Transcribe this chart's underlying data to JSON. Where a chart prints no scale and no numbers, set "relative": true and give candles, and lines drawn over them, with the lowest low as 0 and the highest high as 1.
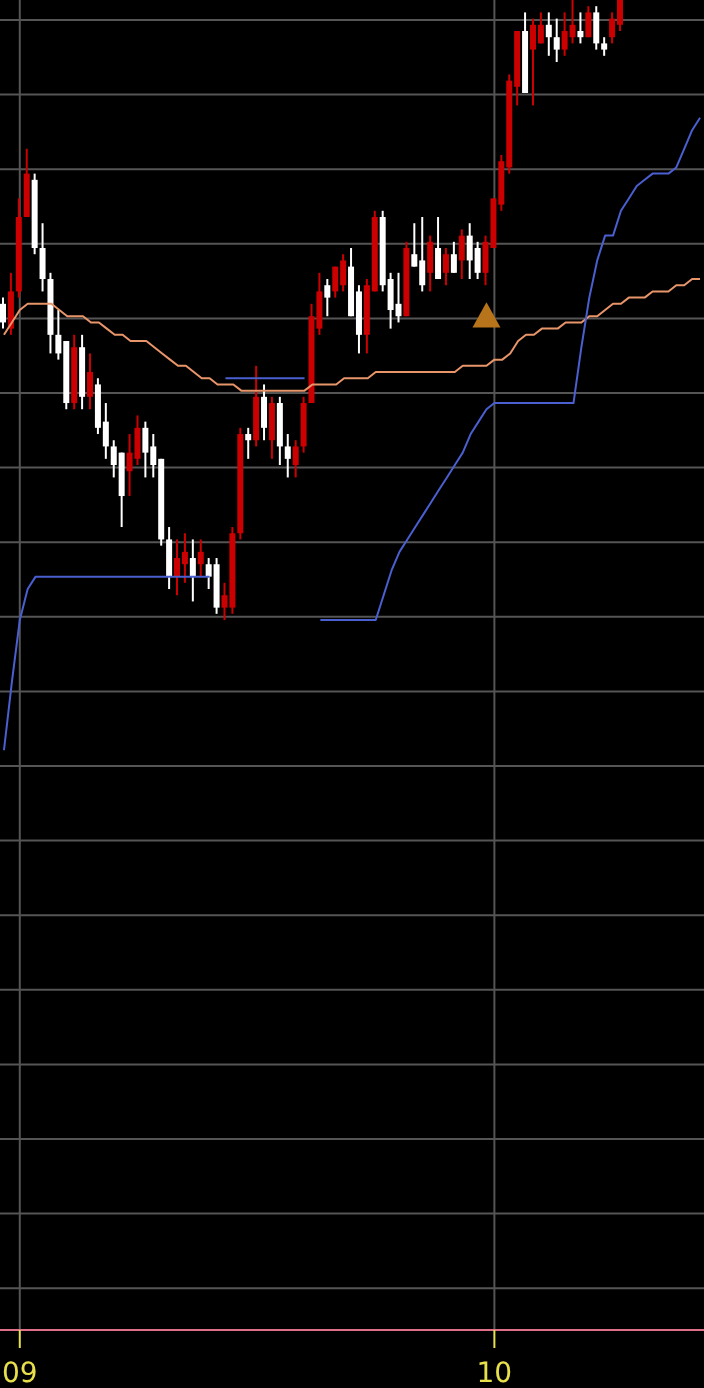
{
  "chart_data": {
    "type": "candlestick",
    "relative": true,
    "grid": true,
    "categories": [
      null,
      null,
      "09",
      null,
      null,
      null,
      null,
      null,
      null,
      null,
      null,
      null,
      null,
      null,
      null,
      null,
      null,
      null,
      null,
      null,
      null,
      null,
      null,
      null,
      null,
      null,
      null,
      null,
      null,
      null,
      null,
      null,
      null,
      null,
      null,
      null,
      null,
      null,
      null,
      null,
      null,
      null,
      null,
      null,
      null,
      null,
      null,
      null,
      null,
      null,
      null,
      null,
      null,
      null,
      null,
      null,
      null,
      null,
      null,
      null,
      null,
      null,
      "10",
      null,
      null,
      null,
      null,
      null,
      null,
      null,
      null,
      null,
      null,
      null,
      null,
      null,
      null,
      null,
      null,
      null,
      null,
      null,
      null,
      null,
      null,
      null,
      null,
      null,
      null
    ],
    "ohlc": [
      [
        0.51,
        0.52,
        0.47,
        0.48
      ],
      [
        0.47,
        0.56,
        0.46,
        0.53
      ],
      [
        0.53,
        0.68,
        0.52,
        0.65
      ],
      [
        0.65,
        0.76,
        0.65,
        0.72
      ],
      [
        0.71,
        0.72,
        0.59,
        0.6
      ],
      [
        0.6,
        0.64,
        0.53,
        0.55
      ],
      [
        0.55,
        0.56,
        0.43,
        0.46
      ],
      [
        0.46,
        0.5,
        0.42,
        0.43
      ],
      [
        0.45,
        0.45,
        0.34,
        0.35
      ],
      [
        0.35,
        0.46,
        0.34,
        0.44
      ],
      [
        0.44,
        0.46,
        0.34,
        0.36
      ],
      [
        0.36,
        0.43,
        0.34,
        0.4
      ],
      [
        0.38,
        0.39,
        0.3,
        0.31
      ],
      [
        0.32,
        0.35,
        0.26,
        0.28
      ],
      [
        0.28,
        0.29,
        0.23,
        0.25
      ],
      [
        0.27,
        0.27,
        0.15,
        0.2
      ],
      [
        0.24,
        0.3,
        0.2,
        0.27
      ],
      [
        0.26,
        0.33,
        0.25,
        0.31
      ],
      [
        0.31,
        0.32,
        0.23,
        0.27
      ],
      [
        0.28,
        0.3,
        0.23,
        0.25
      ],
      [
        0.26,
        0.26,
        0.12,
        0.13
      ],
      [
        0.13,
        0.15,
        0.05,
        0.07
      ],
      [
        0.07,
        0.13,
        0.04,
        0.1
      ],
      [
        0.09,
        0.14,
        0.06,
        0.11
      ],
      [
        0.1,
        0.13,
        0.03,
        0.07
      ],
      [
        0.09,
        0.13,
        0.07,
        0.11
      ],
      [
        0.09,
        0.1,
        0.05,
        0.07
      ],
      [
        0.09,
        0.1,
        0.01,
        0.02
      ],
      [
        0.02,
        0.06,
        0,
        0.04
      ],
      [
        0.02,
        0.15,
        0.01,
        0.14
      ],
      [
        0.14,
        0.31,
        0.13,
        0.3
      ],
      [
        0.3,
        0.31,
        0.26,
        0.29
      ],
      [
        0.29,
        0.41,
        0.28,
        0.36
      ],
      [
        0.36,
        0.38,
        0.29,
        0.31
      ],
      [
        0.29,
        0.36,
        0.26,
        0.35
      ],
      [
        0.35,
        0.36,
        0.25,
        0.28
      ],
      [
        0.28,
        0.3,
        0.23,
        0.26
      ],
      [
        0.25,
        0.29,
        0.23,
        0.28
      ],
      [
        0.28,
        0.36,
        0.27,
        0.35
      ],
      [
        0.35,
        0.51,
        0.35,
        0.49
      ],
      [
        0.47,
        0.56,
        0.46,
        0.53
      ],
      [
        0.54,
        0.55,
        0.49,
        0.52
      ],
      [
        0.53,
        0.57,
        0.52,
        0.57
      ],
      [
        0.54,
        0.59,
        0.53,
        0.58
      ],
      [
        0.57,
        0.6,
        0.49,
        0.49
      ],
      [
        0.53,
        0.54,
        0.43,
        0.46
      ],
      [
        0.46,
        0.55,
        0.43,
        0.54
      ],
      [
        0.53,
        0.66,
        0.53,
        0.65
      ],
      [
        0.65,
        0.66,
        0.53,
        0.54
      ],
      [
        0.55,
        0.56,
        0.47,
        0.5
      ],
      [
        0.51,
        0.56,
        0.48,
        0.49
      ],
      [
        0.49,
        0.61,
        0.49,
        0.6
      ],
      [
        0.59,
        0.64,
        0.57,
        0.57
      ],
      [
        0.58,
        0.65,
        0.53,
        0.54
      ],
      [
        0.56,
        0.62,
        0.53,
        0.61
      ],
      [
        0.6,
        0.65,
        0.55,
        0.55
      ],
      [
        0.56,
        0.6,
        0.54,
        0.59
      ],
      [
        0.59,
        0.61,
        0.56,
        0.56
      ],
      [
        0.58,
        0.63,
        0.55,
        0.62
      ],
      [
        0.62,
        0.64,
        0.55,
        0.58
      ],
      [
        0.6,
        0.61,
        0.55,
        0.56
      ],
      [
        0.56,
        0.62,
        0.54,
        0.61
      ],
      [
        0.6,
        0.68,
        0.6,
        0.68
      ],
      [
        0.67,
        0.75,
        0.66,
        0.74
      ],
      [
        0.73,
        0.88,
        0.72,
        0.87
      ],
      [
        0.86,
        0.95,
        0.83,
        0.95
      ],
      [
        0.95,
        0.98,
        0.85,
        0.85
      ],
      [
        0.92,
        0.97,
        0.83,
        0.96
      ],
      [
        0.93,
        0.98,
        0.93,
        0.96
      ],
      [
        0.96,
        0.98,
        0.91,
        0.94
      ],
      [
        0.94,
        0.97,
        0.9,
        0.92
      ],
      [
        0.92,
        0.98,
        0.91,
        0.95
      ],
      [
        0.94,
        1,
        0.93,
        0.96
      ],
      [
        0.95,
        0.98,
        0.93,
        0.94
      ],
      [
        0.94,
        0.99,
        0.94,
        0.98
      ],
      [
        0.98,
        0.99,
        0.92,
        0.93
      ],
      [
        0.93,
        0.94,
        0.91,
        0.92
      ],
      [
        0.94,
        0.98,
        0.93,
        0.97
      ],
      [
        0.96,
        1,
        0.95,
        1
      ],
      null,
      null,
      null,
      null,
      null,
      null,
      null,
      null,
      null,
      null
    ],
    "colors": [
      "#ffffff",
      "#cc0000",
      "#cc0000",
      "#cc0000",
      "#ffffff",
      "#ffffff",
      "#ffffff",
      "#ffffff",
      "#ffffff",
      "#cc0000",
      "#ffffff",
      "#cc0000",
      "#ffffff",
      "#ffffff",
      "#ffffff",
      "#ffffff",
      "#cc0000",
      "#cc0000",
      "#ffffff",
      "#ffffff",
      "#ffffff",
      "#ffffff",
      "#cc0000",
      "#cc0000",
      "#ffffff",
      "#cc0000",
      "#ffffff",
      "#ffffff",
      "#cc0000",
      "#cc0000",
      "#cc0000",
      "#ffffff",
      "#cc0000",
      "#ffffff",
      "#cc0000",
      "#ffffff",
      "#ffffff",
      "#cc0000",
      "#cc0000",
      "#cc0000",
      "#cc0000",
      "#ffffff",
      "#cc0000",
      "#cc0000",
      "#ffffff",
      "#ffffff",
      "#cc0000",
      "#cc0000",
      "#ffffff",
      "#ffffff",
      "#ffffff",
      "#cc0000",
      "#ffffff",
      "#ffffff",
      "#cc0000",
      "#ffffff",
      "#cc0000",
      "#ffffff",
      "#cc0000",
      "#ffffff",
      "#ffffff",
      "#cc0000",
      "#cc0000",
      "#cc0000",
      "#cc0000",
      "#cc0000",
      "#ffffff",
      "#cc0000",
      "#cc0000",
      "#ffffff",
      "#ffffff",
      "#cc0000",
      "#cc0000",
      "#ffffff",
      "#cc0000",
      "#ffffff",
      "#ffffff",
      "#cc0000",
      "#cc0000",
      null,
      null,
      null,
      null,
      null,
      null,
      null,
      null,
      null,
      null
    ],
    "series": [
      {
        "type": "line",
        "color": "#e8956a",
        "marker": "none",
        "values": [
          0.46,
          0.48,
          0.5,
          0.51,
          0.51,
          0.51,
          0.51,
          0.5,
          0.49,
          0.49,
          0.49,
          0.48,
          0.48,
          0.47,
          0.46,
          0.46,
          0.45,
          0.45,
          0.45,
          0.44,
          0.43,
          0.42,
          0.41,
          0.41,
          0.4,
          0.39,
          0.39,
          0.38,
          0.38,
          0.38,
          0.37,
          0.37,
          0.37,
          0.37,
          0.37,
          0.37,
          0.37,
          0.37,
          0.37,
          0.38,
          0.38,
          0.38,
          0.38,
          0.39,
          0.39,
          0.39,
          0.39,
          0.4,
          0.4,
          0.4,
          0.4,
          0.4,
          0.4,
          0.4,
          0.4,
          0.4,
          0.4,
          0.4,
          0.41,
          0.41,
          0.41,
          0.41,
          0.42,
          0.42,
          0.43,
          0.45,
          0.46,
          0.46,
          0.47,
          0.47,
          0.47,
          0.48,
          0.48,
          0.48,
          0.49,
          0.49,
          0.5,
          0.51,
          0.51,
          0.52,
          0.52,
          0.52,
          0.53,
          0.53,
          0.53,
          0.54,
          0.54,
          0.55,
          0.55
        ]
      },
      {
        "type": "line",
        "color": "#4a5fd0",
        "marker": "none",
        "values": [
          -0.21,
          -0.1,
          0,
          0.05,
          0.07,
          0.07,
          0.07,
          0.07,
          0.07,
          0.07,
          0.07,
          0.07,
          0.07,
          0.07,
          0.07,
          0.07,
          0.07,
          0.07,
          0.07,
          0.07,
          0.07,
          0.07,
          0.07,
          0.07,
          0.07,
          0.07,
          0.07,
          null,
          0.39,
          0.39,
          0.39,
          0.39,
          0.39,
          0.39,
          0.39,
          0.39,
          0.39,
          0.39,
          0.39,
          null,
          0,
          0,
          0,
          0,
          0,
          0,
          0,
          0,
          0.04,
          0.08,
          0.11,
          0.13,
          0.15,
          0.17,
          0.19,
          0.21,
          0.23,
          0.25,
          0.27,
          0.3,
          0.32,
          0.34,
          0.35,
          0.35,
          0.35,
          0.35,
          0.35,
          0.35,
          0.35,
          0.35,
          0.35,
          0.35,
          0.35,
          0.44,
          0.52,
          0.58,
          0.62,
          0.62,
          0.66,
          0.68,
          0.7,
          0.71,
          0.72,
          0.72,
          0.72,
          0.73,
          0.76,
          0.79,
          0.81
        ]
      },
      {
        "type": "scatter",
        "color": "#b8741a",
        "marker": "triangle",
        "values": [
          null,
          null,
          null,
          null,
          null,
          null,
          null,
          null,
          null,
          null,
          null,
          null,
          null,
          null,
          null,
          null,
          null,
          null,
          null,
          null,
          null,
          null,
          null,
          null,
          null,
          null,
          null,
          null,
          null,
          null,
          null,
          null,
          null,
          null,
          null,
          null,
          null,
          null,
          null,
          null,
          null,
          null,
          null,
          null,
          null,
          null,
          null,
          null,
          null,
          null,
          null,
          null,
          null,
          null,
          null,
          null,
          null,
          null,
          null,
          null,
          null,
          0.49,
          null,
          null,
          null,
          null,
          null,
          null,
          null,
          null,
          null,
          null,
          null,
          null,
          null,
          null,
          null,
          null,
          null,
          null,
          null,
          null,
          null,
          null,
          null,
          null,
          null,
          null,
          null
        ]
      }
    ]
  }
}
